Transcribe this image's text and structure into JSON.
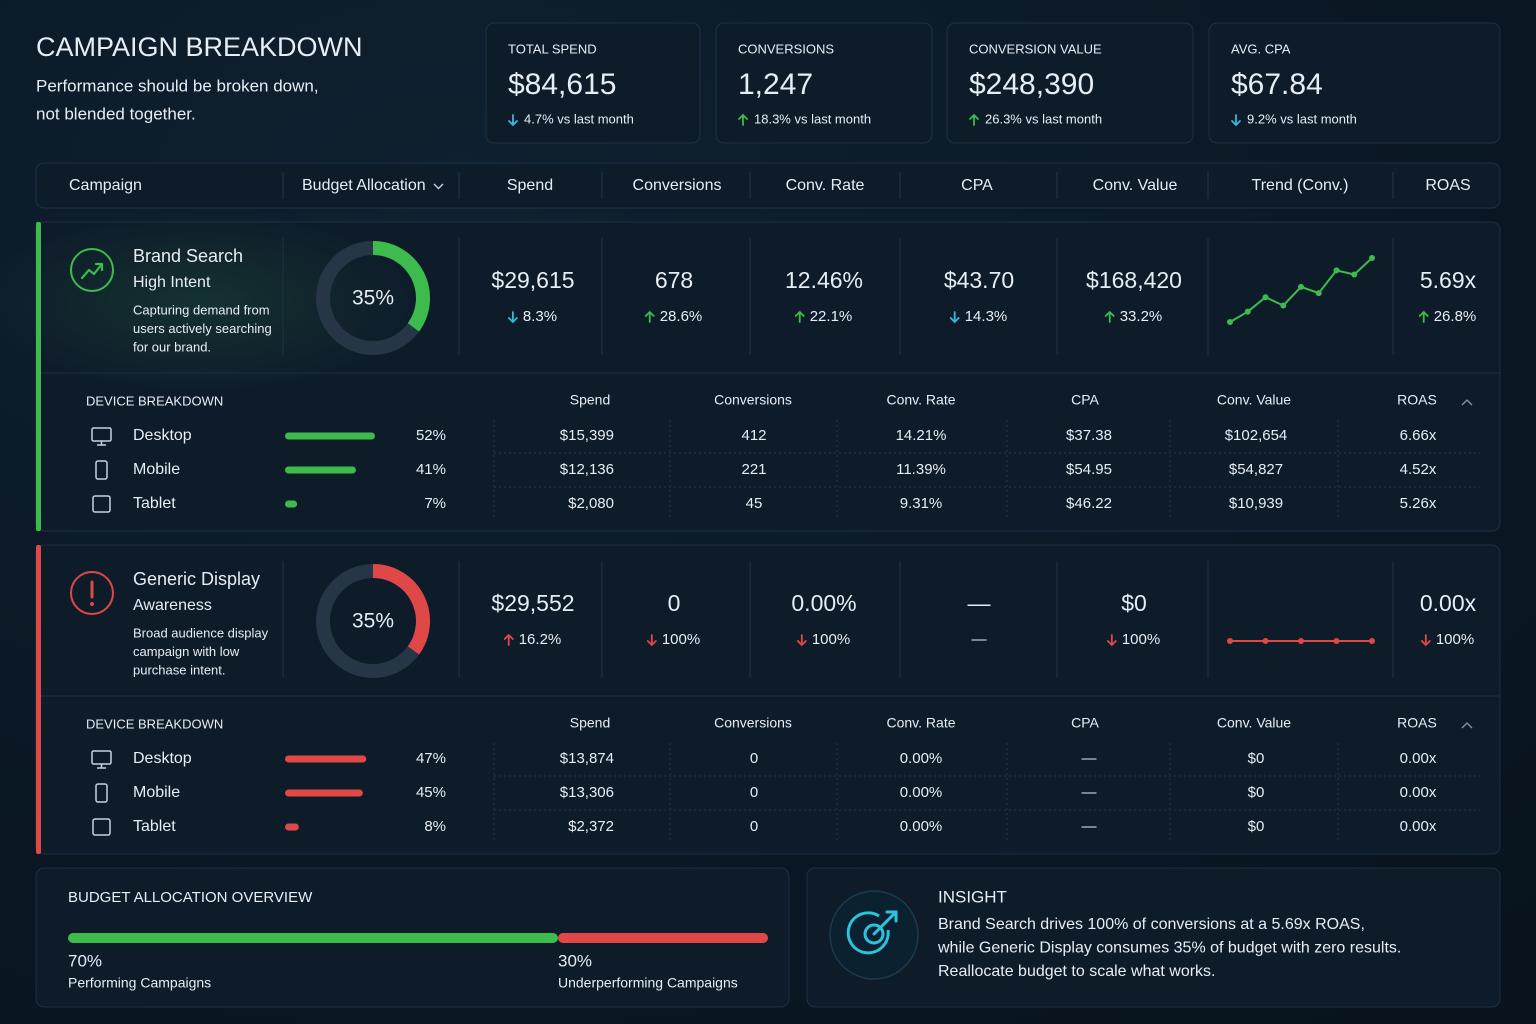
{
  "header": {
    "title": "CAMPAIGN BREAKDOWN",
    "subtitle": [
      "Performance should be broken down,",
      "not blended together."
    ]
  },
  "kpis": [
    {
      "label": "TOTAL SPEND",
      "value": "$84,615",
      "delta": "4.7% vs last month",
      "direction": "down",
      "color": "#3ab8d8"
    },
    {
      "label": "CONVERSIONS",
      "value": "1,247",
      "delta": "18.3% vs last month",
      "direction": "up",
      "color": "#3dbb4c"
    },
    {
      "label": "CONVERSION VALUE",
      "value": "$248,390",
      "delta": "26.3% vs last month",
      "direction": "up",
      "color": "#3dbb4c"
    },
    {
      "label": "AVG. CPA",
      "value": "$67.84",
      "delta": "9.2% vs last month",
      "direction": "down",
      "color": "#3ab8d8"
    }
  ],
  "table": {
    "columns": [
      "Campaign",
      "Budget Allocation",
      "Spend",
      "Conversions",
      "Conv. Rate",
      "CPA",
      "Conv. Value",
      "Trend (Conv.)",
      "ROAS"
    ]
  },
  "campaigns": [
    {
      "name": "Brand Search",
      "intent": "High Intent",
      "description": [
        "Capturing demand from",
        "users actively searching",
        "for our brand."
      ],
      "color": "#3dbb4c",
      "allocation": {
        "value": 35,
        "label": "35%"
      },
      "metrics": [
        {
          "value": "$29,615",
          "delta": "8.3%",
          "direction": "down",
          "color": "#3ab8d8"
        },
        {
          "value": "678",
          "delta": "28.6%",
          "direction": "up",
          "color": "#3dbb4c"
        },
        {
          "value": "12.46%",
          "delta": "22.1%",
          "direction": "up",
          "color": "#3dbb4c"
        },
        {
          "value": "$43.70",
          "delta": "14.3%",
          "direction": "down",
          "color": "#3ab8d8"
        },
        {
          "value": "$168,420",
          "delta": "33.2%",
          "direction": "up",
          "color": "#3dbb4c"
        },
        {
          "value": "5.69x",
          "delta": "26.8%",
          "direction": "up",
          "color": "#3dbb4c"
        }
      ],
      "trend": [
        2,
        4.5,
        8,
        6,
        10.5,
        9,
        14.5,
        13.5,
        17.5
      ],
      "devices": {
        "title": "DEVICE BREAKDOWN",
        "columns": [
          "Spend",
          "Conversions",
          "Conv. Rate",
          "CPA",
          "Conv. Value",
          "ROAS"
        ],
        "rows": [
          {
            "name": "Desktop",
            "share": {
              "value": 52,
              "label": "52%"
            },
            "cells": [
              "$15,399",
              "412",
              "14.21%",
              "$37.38",
              "$102,654",
              "6.66x"
            ]
          },
          {
            "name": "Mobile",
            "share": {
              "value": 41,
              "label": "41%"
            },
            "cells": [
              "$12,136",
              "221",
              "11.39%",
              "$54.95",
              "$54,827",
              "4.52x"
            ]
          },
          {
            "name": "Tablet",
            "share": {
              "value": 7,
              "label": "7%"
            },
            "cells": [
              "$2,080",
              "45",
              "9.31%",
              "$46.22",
              "$10,939",
              "5.26x"
            ]
          }
        ]
      }
    },
    {
      "name": "Generic Display",
      "intent": "Awareness",
      "description": [
        "Broad audience display",
        "campaign with low",
        "purchase intent."
      ],
      "color": "#e04848",
      "allocation": {
        "value": 35,
        "label": "35%"
      },
      "metrics": [
        {
          "value": "$29,552",
          "delta": "16.2%",
          "direction": "up",
          "color": "#e04848"
        },
        {
          "value": "0",
          "delta": "100%",
          "direction": "down",
          "color": "#e04848"
        },
        {
          "value": "0.00%",
          "delta": "100%",
          "direction": "down",
          "color": "#e04848"
        },
        {
          "value": "—",
          "delta": "—",
          "color": "#c8d2dc"
        },
        {
          "value": "$0",
          "delta": "100%",
          "direction": "down",
          "color": "#e04848"
        },
        {
          "value": "0.00x",
          "delta": "100%",
          "direction": "down",
          "color": "#e04848"
        }
      ],
      "trend": [
        0,
        0,
        0,
        0,
        0
      ],
      "devices": {
        "title": "DEVICE BREAKDOWN",
        "columns": [
          "Spend",
          "Conversions",
          "Conv. Rate",
          "CPA",
          "Conv. Value",
          "ROAS"
        ],
        "rows": [
          {
            "name": "Desktop",
            "share": {
              "value": 47,
              "label": "47%"
            },
            "cells": [
              "$13,874",
              "0",
              "0.00%",
              "—",
              "$0",
              "0.00x"
            ]
          },
          {
            "name": "Mobile",
            "share": {
              "value": 45,
              "label": "45%"
            },
            "cells": [
              "$13,306",
              "0",
              "0.00%",
              "—",
              "$0",
              "0.00x"
            ]
          },
          {
            "name": "Tablet",
            "share": {
              "value": 8,
              "label": "8%"
            },
            "cells": [
              "$2,372",
              "0",
              "0.00%",
              "—",
              "$0",
              "0.00x"
            ]
          }
        ]
      }
    }
  ],
  "overview": {
    "title": "BUDGET ALLOCATION OVERVIEW",
    "segments": [
      {
        "share": {
          "value": 70,
          "label": "70%"
        },
        "label": "Performing Campaigns",
        "color": "#3dbb4c"
      },
      {
        "share": {
          "value": 30,
          "label": "30%"
        },
        "label": "Underperforming Campaigns",
        "color": "#e04848"
      }
    ]
  },
  "insight": {
    "title": "INSIGHT",
    "lines": [
      "Brand Search drives 100% of conversions at a 5.69x ROAS,",
      "while Generic Display consumes 35% of budget with zero results.",
      "Reallocate budget to scale what works."
    ]
  }
}
